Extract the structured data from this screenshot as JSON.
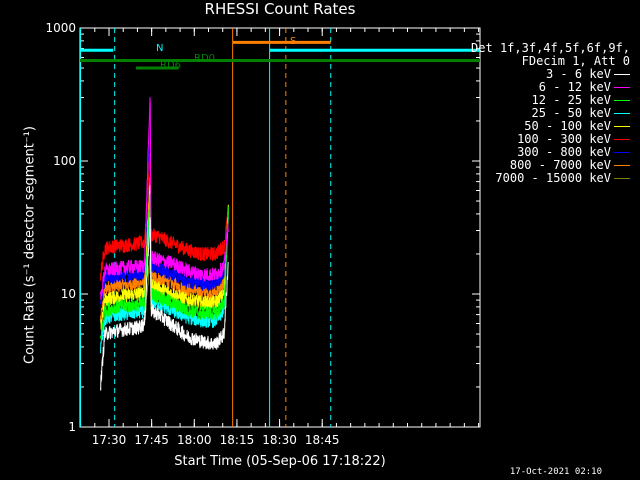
{
  "chart_data": {
    "type": "line",
    "title": "RHESSI Count Rates",
    "xlabel": "Start Time (05-Sep-06 17:18:22)",
    "ylabel": "Count Rate (s⁻¹ detector segment⁻¹)",
    "yscale": "log",
    "ylim": [
      1,
      1000
    ],
    "xlim_minutes": [
      17.3,
      158.0
    ],
    "x_ticks": [
      {
        "label": "17:30",
        "t": 27.5
      },
      {
        "label": "17:45",
        "t": 42.5
      },
      {
        "label": "18:00",
        "t": 57.5
      },
      {
        "label": "18:15",
        "t": 72.5
      },
      {
        "label": "18:30",
        "t": 87.5
      },
      {
        "label": "18:45",
        "t": 102.5
      }
    ],
    "y_ticks": [
      {
        "label": "1",
        "v": 1
      },
      {
        "label": "10",
        "v": 10
      },
      {
        "label": "100",
        "v": 100
      },
      {
        "label": "1000",
        "v": 1000
      }
    ],
    "legend_header": [
      "Det 1f,3f,4f,5f,6f,9f,",
      "FDecim 1, Att 0"
    ],
    "legend_position": "right",
    "series": [
      {
        "name": "3 - 6 keV",
        "color": "#ffffff",
        "t": [
          24.5,
          26.0,
          30.0,
          35.0,
          38.0,
          40.0,
          42.0,
          42.3,
          45.0,
          50.0,
          55.0,
          60.0,
          65.0,
          68.0,
          69.5
        ],
        "values": [
          2.0,
          5.0,
          5.3,
          5.5,
          5.6,
          6.0,
          40.0,
          7.5,
          7.0,
          5.8,
          4.8,
          4.4,
          4.2,
          5.0,
          18.0
        ]
      },
      {
        "name": "6 - 12 keV",
        "color": "#ff00ff",
        "t": [
          24.5,
          26.0,
          30.0,
          35.0,
          38.0,
          40.0,
          42.0,
          42.3,
          45.0,
          50.0,
          55.0,
          60.0,
          65.0,
          68.0,
          69.5
        ],
        "values": [
          9.0,
          15.0,
          15.5,
          16.0,
          16.0,
          16.5,
          330.0,
          19.0,
          18.0,
          17.0,
          15.0,
          14.0,
          14.0,
          16.0,
          35.0
        ]
      },
      {
        "name": "12 - 25 keV",
        "color": "#00ff00",
        "t": [
          24.5,
          26.0,
          30.0,
          35.0,
          38.0,
          40.0,
          42.0,
          42.3,
          45.0,
          50.0,
          55.0,
          60.0,
          65.0,
          68.0,
          69.5
        ],
        "values": [
          4.5,
          7.5,
          8.0,
          8.2,
          8.3,
          8.5,
          60.0,
          10.0,
          9.5,
          8.5,
          7.6,
          7.2,
          7.2,
          8.5,
          48.0
        ]
      },
      {
        "name": "25 - 50 keV",
        "color": "#00ffff",
        "t": [
          24.5,
          26.0,
          30.0,
          35.0,
          38.0,
          40.0,
          42.0,
          42.3,
          45.0,
          50.0,
          55.0,
          60.0,
          65.0,
          68.0,
          69.5
        ],
        "values": [
          4.0,
          6.5,
          7.0,
          7.2,
          7.3,
          7.5,
          50.0,
          8.8,
          8.4,
          7.5,
          6.7,
          6.3,
          6.3,
          7.5,
          40.0
        ]
      },
      {
        "name": "50 - 100 keV",
        "color": "#ffff00",
        "t": [
          24.5,
          26.0,
          30.0,
          35.0,
          38.0,
          40.0,
          42.0,
          42.3,
          45.0,
          50.0,
          55.0,
          60.0,
          65.0,
          68.0,
          69.5
        ],
        "values": [
          5.5,
          9.0,
          9.5,
          9.8,
          10.0,
          10.2,
          70.0,
          11.5,
          11.0,
          10.0,
          9.0,
          8.6,
          8.6,
          10.0,
          45.0
        ]
      },
      {
        "name": "100 - 300 keV",
        "color": "#ff0000",
        "t": [
          24.5,
          26.0,
          30.0,
          35.0,
          38.0,
          40.0,
          42.0,
          42.3,
          45.0,
          50.0,
          55.0,
          60.0,
          65.0,
          68.0,
          69.5
        ],
        "values": [
          14.0,
          22.0,
          23.0,
          23.5,
          24.0,
          24.5,
          120.0,
          28.0,
          27.0,
          24.0,
          21.5,
          20.0,
          20.0,
          23.0,
          42.0
        ]
      },
      {
        "name": "300 - 800 keV",
        "color": "#0000ff",
        "t": [
          24.5,
          26.0,
          30.0,
          35.0,
          38.0,
          40.0,
          42.0,
          42.3,
          45.0,
          50.0,
          55.0,
          60.0,
          65.0,
          68.0,
          69.5
        ],
        "values": [
          8.0,
          13.0,
          13.5,
          14.0,
          14.2,
          14.5,
          200.0,
          16.5,
          15.5,
          14.0,
          12.5,
          12.0,
          12.0,
          14.0,
          38.0
        ]
      },
      {
        "name": "800 - 7000 keV",
        "color": "#ff8000",
        "t": [
          24.5,
          26.0,
          30.0,
          35.0,
          38.0,
          40.0,
          42.0,
          42.3,
          45.0,
          50.0,
          55.0,
          60.0,
          65.0,
          68.0,
          69.5
        ],
        "values": [
          6.5,
          11.0,
          11.5,
          11.8,
          12.0,
          12.2,
          80.0,
          13.5,
          13.0,
          12.0,
          10.8,
          10.3,
          10.3,
          12.0,
          40.0
        ]
      },
      {
        "name": "7000 - 15000 keV",
        "color": "#808000",
        "t": [
          40.0,
          42.0,
          42.3
        ],
        "values": [
          6.0,
          20.0,
          6.0
        ]
      }
    ],
    "annotations": [
      {
        "label": "N",
        "color": "#00ffff",
        "t_start": 17.3,
        "t_end": 29.0,
        "level": 680
      },
      {
        "label": "N",
        "color": "#00ffff",
        "t_start": 84.0,
        "t_end": 158.0,
        "level": 680
      },
      {
        "label": "S",
        "color": "#ff8000",
        "t_start": 71.0,
        "t_end": 105.5,
        "level": 780
      },
      {
        "label": "RD0",
        "color": "#008000",
        "t_start": 17.3,
        "t_end": 158.0,
        "level": 570
      },
      {
        "label": "RD6",
        "color": "#008000",
        "t_start": 37.0,
        "t_end": 52.0,
        "level": 500
      }
    ],
    "vertical_markers": [
      {
        "t": 17.5,
        "color": "#00ffff",
        "style": "solid"
      },
      {
        "t": 29.5,
        "color": "#00ffff",
        "style": "dashed"
      },
      {
        "t": 71.0,
        "color": "#ff8000",
        "style": "solid"
      },
      {
        "t": 84.0,
        "color": "#00ffff",
        "style": "solid"
      },
      {
        "t": 89.7,
        "color": "#ff8000",
        "style": "dashed"
      },
      {
        "t": 105.5,
        "color": "#00ffff",
        "style": "dashed"
      }
    ]
  },
  "footer": {
    "timestamp": "17-Oct-2021 02:10"
  }
}
